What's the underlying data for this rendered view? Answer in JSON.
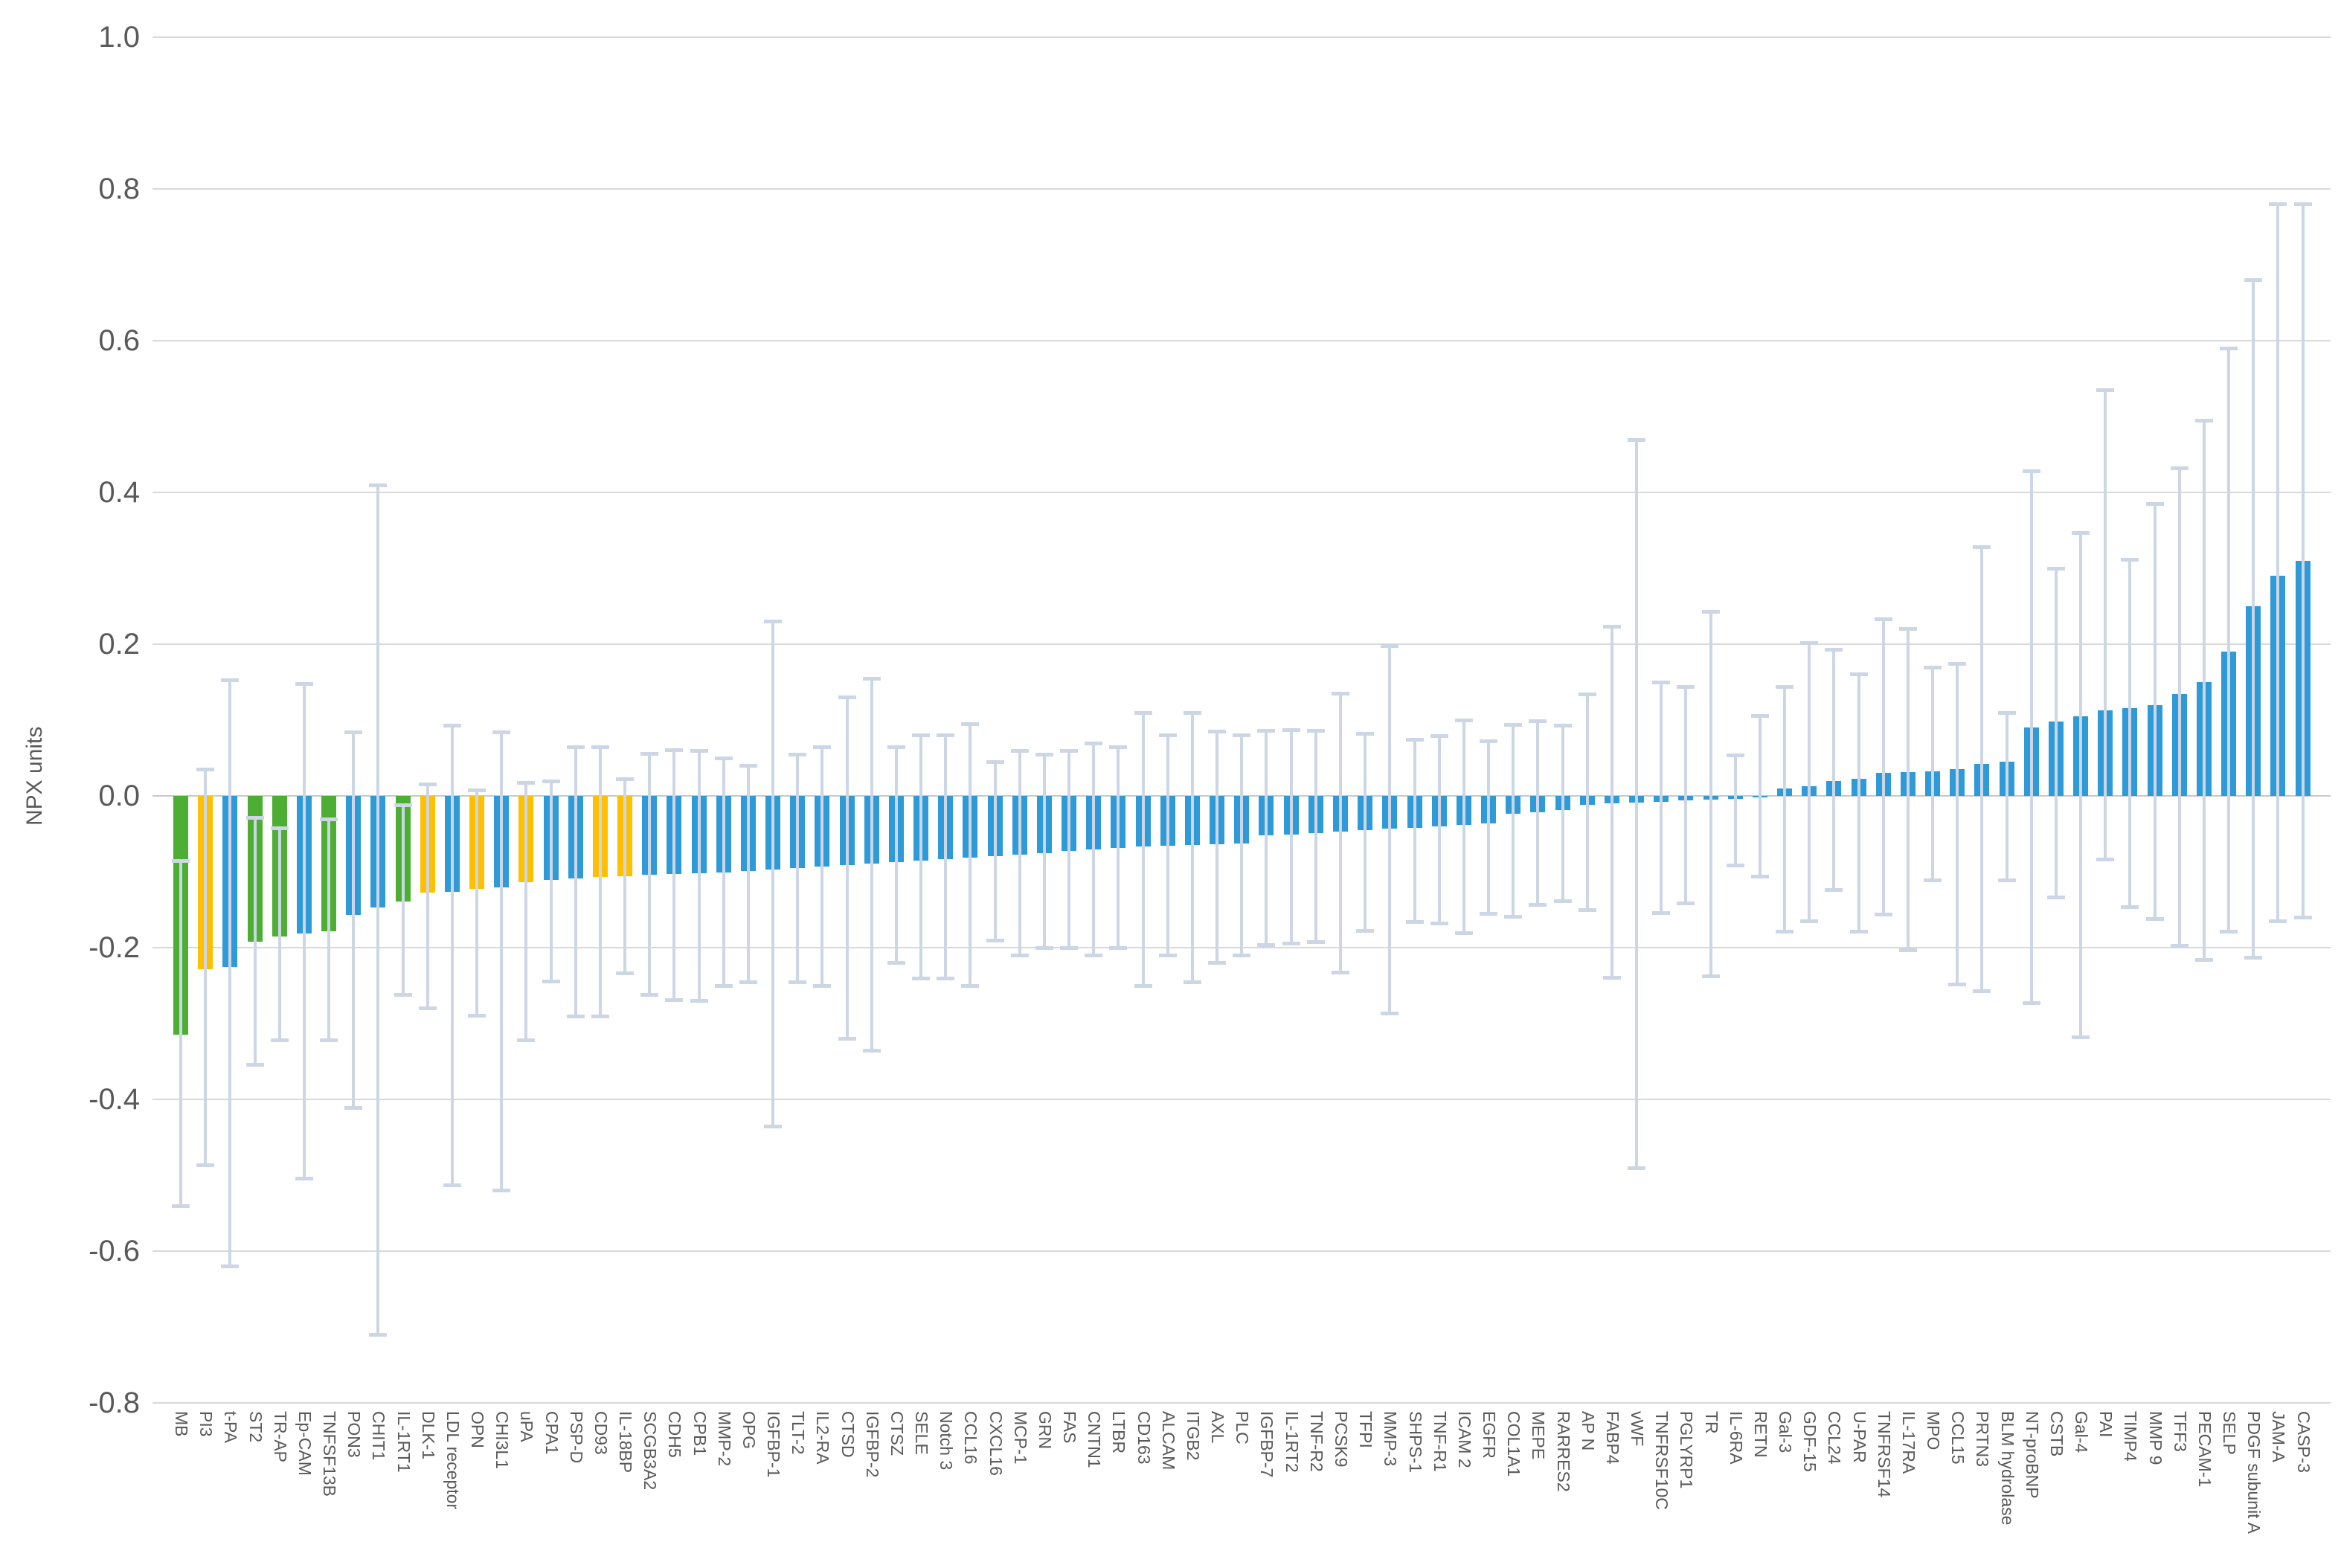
{
  "chart_data": {
    "type": "bar",
    "title": "",
    "ylabel": "NPX units",
    "ylim": [
      -0.8,
      1.0
    ],
    "ytick_step": 0.2,
    "yticks": [
      "1.0",
      "0.8",
      "0.6",
      "0.4",
      "0.2",
      "0.0",
      "-0.2",
      "-0.4",
      "-0.6",
      "-0.8"
    ],
    "grid": true,
    "legend": "none",
    "error_bars": true,
    "palette": {
      "blue": "#2E9BD8",
      "green": "#4CAE32",
      "yellow": "#FFC000",
      "whisker": "#CDD6E4",
      "gridline": "#D9D9D9",
      "axis_text": "#595959"
    },
    "categories": [
      "MB",
      "PI3",
      "t-PA",
      "ST2",
      "TR-AP",
      "Ep-CAM",
      "TNFSF13B",
      "PON3",
      "CHIT1",
      "IL-1RT1",
      "DLK-1",
      "LDL receptor",
      "OPN",
      "CHI3L1",
      "uPA",
      "CPA1",
      "PSP-D",
      "CD93",
      "IL-18BP",
      "SCGB3A2",
      "CDH5",
      "CPB1",
      "MMP-2",
      "OPG",
      "IGFBP-1",
      "TLT-2",
      "IL2-RA",
      "CTSD",
      "IGFBP-2",
      "CTSZ",
      "SELE",
      "Notch 3",
      "CCL16",
      "CXCL16",
      "MCP-1",
      "GRN",
      "FAS",
      "CNTN1",
      "LTBR",
      "CD163",
      "ALCAM",
      "ITGB2",
      "AXL",
      "PLC",
      "IGFBP-7",
      "IL-1RT2",
      "TNF-R2",
      "PCSK9",
      "TFPI",
      "MMP-3",
      "SHPS-1",
      "TNF-R1",
      "ICAM 2",
      "EGFR",
      "COL1A1",
      "MEPE",
      "RARRES2",
      "AP N",
      "FABP4",
      "vWF",
      "TNFRSF10C",
      "PGLYRP1",
      "TR",
      "IL-6RA",
      "RETN",
      "Gal-3",
      "GDF-15",
      "CCL24",
      "U-PAR",
      "TNFRSF14",
      "IL-17RA",
      "MPO",
      "CCL15",
      "PRTN3",
      "BLM hydrolase",
      "NT-proBNP",
      "CSTB",
      "Gal-4",
      "PAI",
      "TIMP4",
      "MMP 9",
      "TFF3",
      "PECAM-1",
      "SELP",
      "PDGF subunit A",
      "JAM-A",
      "CASP-3"
    ],
    "values": [
      -0.315,
      -0.228,
      -0.225,
      -0.192,
      -0.185,
      -0.181,
      -0.178,
      -0.157,
      -0.147,
      -0.139,
      -0.127,
      -0.126,
      -0.123,
      -0.121,
      -0.114,
      -0.111,
      -0.109,
      -0.107,
      -0.106,
      -0.104,
      -0.103,
      -0.102,
      -0.101,
      -0.099,
      -0.097,
      -0.095,
      -0.093,
      -0.091,
      -0.089,
      -0.087,
      -0.085,
      -0.083,
      -0.081,
      -0.079,
      -0.077,
      -0.075,
      -0.073,
      -0.071,
      -0.069,
      -0.067,
      -0.066,
      -0.065,
      -0.064,
      -0.063,
      -0.052,
      -0.051,
      -0.049,
      -0.047,
      -0.045,
      -0.043,
      -0.042,
      -0.04,
      -0.038,
      -0.036,
      -0.024,
      -0.022,
      -0.019,
      -0.012,
      -0.01,
      -0.009,
      -0.008,
      -0.006,
      -0.005,
      -0.004,
      -0.002,
      0.01,
      0.013,
      0.02,
      0.023,
      0.03,
      0.031,
      0.032,
      0.035,
      0.042,
      0.045,
      0.09,
      0.098,
      0.105,
      0.113,
      0.116,
      0.12,
      0.134,
      0.15,
      0.19,
      0.25,
      0.29,
      0.31
    ],
    "error_low": [
      -0.54,
      -0.486,
      -0.62,
      -0.354,
      -0.322,
      -0.504,
      -0.322,
      -0.411,
      -0.71,
      -0.262,
      -0.279,
      -0.513,
      -0.289,
      -0.52,
      -0.322,
      -0.244,
      -0.29,
      -0.29,
      -0.233,
      -0.262,
      -0.269,
      -0.27,
      -0.25,
      -0.245,
      -0.435,
      -0.245,
      -0.25,
      -0.32,
      -0.335,
      -0.22,
      -0.24,
      -0.24,
      -0.25,
      -0.19,
      -0.21,
      -0.2,
      -0.2,
      -0.21,
      -0.2,
      -0.25,
      -0.21,
      -0.245,
      -0.22,
      -0.21,
      -0.196,
      -0.194,
      -0.192,
      -0.232,
      -0.177,
      -0.286,
      -0.166,
      -0.168,
      -0.18,
      -0.155,
      -0.159,
      -0.143,
      -0.138,
      -0.15,
      -0.239,
      -0.49,
      -0.154,
      -0.141,
      -0.237,
      -0.091,
      -0.106,
      -0.178,
      -0.165,
      -0.124,
      -0.178,
      -0.156,
      -0.203,
      -0.111,
      -0.248,
      -0.257,
      -0.111,
      -0.273,
      -0.133,
      -0.318,
      -0.083,
      -0.146,
      -0.162,
      -0.197,
      -0.216,
      -0.178,
      -0.213,
      -0.165,
      -0.16
    ],
    "error_high": [
      -0.085,
      0.035,
      0.153,
      -0.028,
      -0.042,
      0.148,
      -0.03,
      0.084,
      0.41,
      -0.012,
      0.016,
      0.093,
      0.008,
      0.084,
      0.018,
      0.02,
      0.065,
      0.065,
      0.023,
      0.056,
      0.061,
      0.06,
      0.05,
      0.04,
      0.23,
      0.055,
      0.065,
      0.13,
      0.155,
      0.065,
      0.08,
      0.08,
      0.095,
      0.045,
      0.06,
      0.055,
      0.06,
      0.07,
      0.065,
      0.11,
      0.08,
      0.11,
      0.085,
      0.08,
      0.086,
      0.087,
      0.086,
      0.135,
      0.082,
      0.198,
      0.075,
      0.079,
      0.1,
      0.073,
      0.094,
      0.099,
      0.093,
      0.134,
      0.224,
      0.47,
      0.15,
      0.144,
      0.243,
      0.054,
      0.106,
      0.144,
      0.202,
      0.193,
      0.161,
      0.233,
      0.221,
      0.17,
      0.175,
      0.328,
      0.11,
      0.428,
      0.3,
      0.347,
      0.535,
      0.312,
      0.385,
      0.432,
      0.495,
      0.59,
      0.68,
      0.78,
      0.78
    ],
    "bar_colors": [
      "green",
      "yellow",
      "blue",
      "green",
      "green",
      "blue",
      "green",
      "blue",
      "blue",
      "green",
      "yellow",
      "blue",
      "yellow",
      "blue",
      "yellow",
      "blue",
      "blue",
      "yellow",
      "yellow",
      "blue",
      "blue",
      "blue",
      "blue",
      "blue",
      "blue",
      "blue",
      "blue",
      "blue",
      "blue",
      "blue",
      "blue",
      "blue",
      "blue",
      "blue",
      "blue",
      "blue",
      "blue",
      "blue",
      "blue",
      "blue",
      "blue",
      "blue",
      "blue",
      "blue",
      "blue",
      "blue",
      "blue",
      "blue",
      "blue",
      "blue",
      "blue",
      "blue",
      "blue",
      "blue",
      "blue",
      "blue",
      "blue",
      "blue",
      "blue",
      "blue",
      "blue",
      "blue",
      "blue",
      "blue",
      "blue",
      "blue",
      "blue",
      "blue",
      "blue",
      "blue",
      "blue",
      "blue",
      "blue",
      "blue",
      "blue",
      "blue",
      "blue",
      "blue",
      "blue",
      "blue",
      "blue",
      "blue",
      "blue",
      "blue",
      "blue",
      "blue",
      "blue"
    ]
  }
}
